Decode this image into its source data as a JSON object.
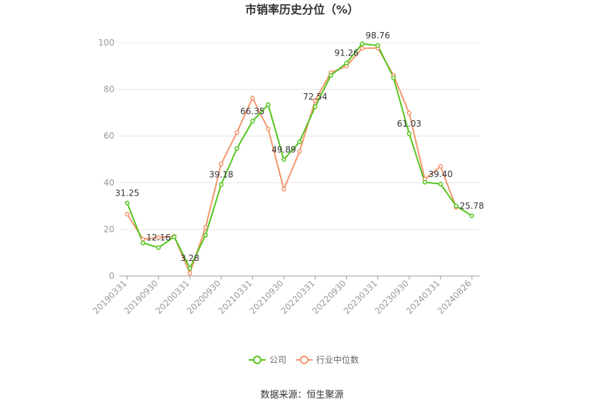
{
  "chart_data": {
    "type": "line",
    "title": "市销率历史分位（%）",
    "x": [
      "20190331",
      "20190630",
      "20190930",
      "20191231",
      "20200331",
      "20200630",
      "20200930",
      "20201231",
      "20210331",
      "20210630",
      "20210930",
      "20211231",
      "20220331",
      "20220630",
      "20220930",
      "20221231",
      "20230331",
      "20230630",
      "20230930",
      "20231231",
      "20240331",
      "20240630",
      "20240826"
    ],
    "xticks": [
      "20190331",
      "20190930",
      "20200331",
      "20200930",
      "20210331",
      "20210930",
      "20220331",
      "20220930",
      "20230331",
      "20230930",
      "20240331",
      "20240826"
    ],
    "ylim": [
      0,
      100
    ],
    "yticks": [
      0,
      20,
      40,
      60,
      80,
      100
    ],
    "grid": true,
    "legend_position": "bottom",
    "series": [
      {
        "name": "公司",
        "color": "#52c41a",
        "values": [
          31.25,
          14.2,
          12.16,
          16.8,
          3.28,
          17.5,
          39.18,
          54.6,
          66.35,
          73.4,
          49.89,
          57.5,
          72.54,
          86.0,
          91.26,
          99.5,
          98.76,
          85.0,
          61.03,
          40.2,
          39.4,
          30.0,
          25.78
        ],
        "labels": {
          "0": "31.25",
          "2": "12.16",
          "4": "3.28",
          "6": "39.18",
          "8": "66.35",
          "10": "49.89",
          "12": "72.54",
          "14": "91.26",
          "16": "98.76",
          "18": "61.03",
          "20": "39.40",
          "22": "25.78"
        }
      },
      {
        "name": "行业中位数",
        "color": "#f4956a",
        "values": [
          26.5,
          15.8,
          16.5,
          17.0,
          1.2,
          20.8,
          48.0,
          61.5,
          76.3,
          63.0,
          37.2,
          53.3,
          75.2,
          87.2,
          89.9,
          97.6,
          97.7,
          86.0,
          69.8,
          41.5,
          47.0,
          29.4,
          null
        ]
      }
    ]
  },
  "footer": {
    "source": "数据来源：恒生聚源"
  }
}
